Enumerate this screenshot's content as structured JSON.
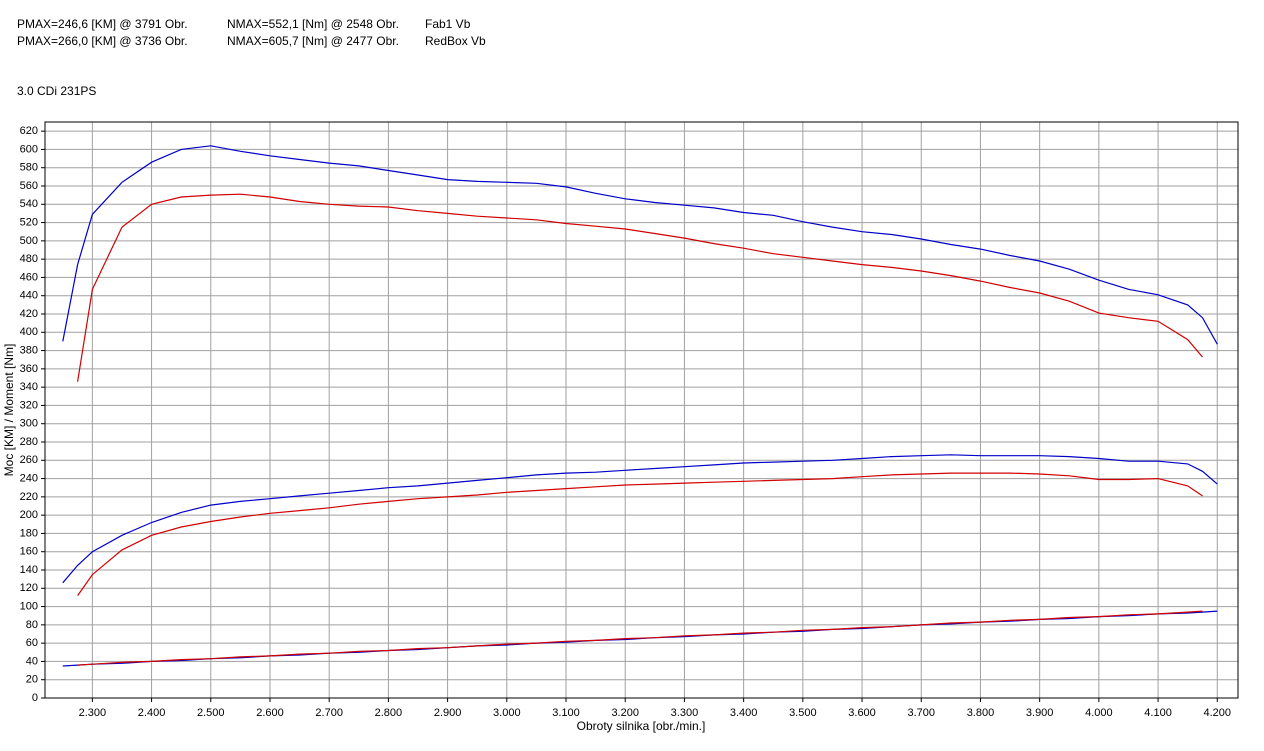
{
  "chart_data": {
    "type": "line",
    "header": [
      {
        "pmax": "PMAX=246,6 [KM] @ 3791 Obr.",
        "nmax": "NMAX=552,1 [Nm] @ 2548 Obr.",
        "name": "Fab1 Vb"
      },
      {
        "pmax": "PMAX=266,0 [KM] @ 3736 Obr.",
        "nmax": "NMAX=605,7 [Nm] @ 2477 Obr.",
        "name": "RedBox Vb"
      }
    ],
    "title": "3.0 CDi 231PS",
    "ylabel": "Moc [KM] / Moment [Nm]",
    "xlabel": "Obroty silnika [obr./min.]",
    "xlim": [
      2220,
      4235
    ],
    "ylim": [
      0,
      630
    ],
    "xticks": [
      {
        "value": 2300,
        "label": "2.300"
      },
      {
        "value": 2400,
        "label": "2.400"
      },
      {
        "value": 2500,
        "label": "2.500"
      },
      {
        "value": 2600,
        "label": "2.600"
      },
      {
        "value": 2700,
        "label": "2.700"
      },
      {
        "value": 2800,
        "label": "2.800"
      },
      {
        "value": 2900,
        "label": "2.900"
      },
      {
        "value": 3000,
        "label": "3.000"
      },
      {
        "value": 3100,
        "label": "3.100"
      },
      {
        "value": 3200,
        "label": "3.200"
      },
      {
        "value": 3300,
        "label": "3.300"
      },
      {
        "value": 3400,
        "label": "3.400"
      },
      {
        "value": 3500,
        "label": "3.500"
      },
      {
        "value": 3600,
        "label": "3.600"
      },
      {
        "value": 3700,
        "label": "3.700"
      },
      {
        "value": 3800,
        "label": "3.800"
      },
      {
        "value": 3900,
        "label": "3.900"
      },
      {
        "value": 4000,
        "label": "4.000"
      },
      {
        "value": 4100,
        "label": "4.100"
      },
      {
        "value": 4200,
        "label": "4.200"
      }
    ],
    "yticks": [
      0,
      20,
      40,
      60,
      80,
      100,
      120,
      140,
      160,
      180,
      200,
      220,
      240,
      260,
      280,
      300,
      320,
      340,
      360,
      380,
      400,
      420,
      440,
      460,
      480,
      500,
      520,
      540,
      560,
      580,
      600,
      620
    ],
    "grid": true,
    "x": [
      2250,
      2275,
      2300,
      2350,
      2400,
      2450,
      2500,
      2550,
      2600,
      2650,
      2700,
      2750,
      2800,
      2850,
      2900,
      2950,
      3000,
      3050,
      3100,
      3150,
      3200,
      3250,
      3300,
      3350,
      3400,
      3450,
      3500,
      3550,
      3600,
      3650,
      3700,
      3750,
      3800,
      3850,
      3900,
      3950,
      4000,
      4050,
      4100,
      4150,
      4175,
      4200
    ],
    "series": [
      {
        "color": "#0000c8",
        "values": [
          390,
          474,
          529,
          564,
          586,
          600,
          604,
          598,
          593,
          589,
          585,
          582,
          577,
          572,
          567,
          565,
          564,
          563,
          559,
          552,
          546,
          542,
          539,
          536,
          531,
          528,
          521,
          515,
          510,
          507,
          502,
          496,
          491,
          484,
          478,
          469,
          457,
          447,
          441,
          430,
          416,
          387
        ]
      },
      {
        "color": "#d00000",
        "values": [
          null,
          346,
          447,
          515,
          540,
          548,
          550,
          551,
          548,
          543,
          540,
          538,
          537,
          533,
          530,
          527,
          525,
          523,
          519,
          516,
          513,
          508,
          503,
          497,
          492,
          486,
          482,
          478,
          474,
          471,
          467,
          462,
          456,
          449,
          443,
          434,
          421,
          416,
          412,
          392,
          373,
          null
        ]
      },
      {
        "color": "#0000c8",
        "values": [
          126,
          145,
          160,
          178,
          192,
          203,
          211,
          215,
          218,
          221,
          224,
          227,
          230,
          232,
          235,
          238,
          241,
          244,
          246,
          247,
          249,
          251,
          253,
          255,
          257,
          258,
          259,
          260,
          262,
          264,
          265,
          266,
          265,
          265,
          265,
          264,
          262,
          259,
          259,
          256,
          248,
          234
        ]
      },
      {
        "color": "#d00000",
        "values": [
          null,
          112,
          135,
          162,
          178,
          187,
          193,
          198,
          202,
          205,
          208,
          212,
          215,
          218,
          220,
          222,
          225,
          227,
          229,
          231,
          233,
          234,
          235,
          236,
          237,
          238,
          239,
          240,
          242,
          244,
          245,
          246,
          246,
          246,
          245,
          243,
          239,
          239,
          240,
          232,
          221,
          null
        ]
      },
      {
        "color": "#0000c8",
        "values": [
          35,
          36,
          37,
          38,
          40,
          41,
          43,
          44,
          46,
          47,
          49,
          50,
          52,
          53,
          55,
          57,
          58,
          60,
          61,
          63,
          64,
          66,
          67,
          69,
          70,
          72,
          73,
          75,
          76,
          78,
          80,
          81,
          83,
          84,
          86,
          87,
          89,
          90,
          92,
          93,
          94,
          95
        ]
      },
      {
        "color": "#d00000",
        "values": [
          null,
          36,
          37,
          39,
          40,
          42,
          43,
          45,
          46,
          48,
          49,
          51,
          52,
          54,
          55,
          57,
          59,
          60,
          62,
          63,
          65,
          66,
          68,
          69,
          71,
          72,
          74,
          75,
          77,
          78,
          80,
          82,
          83,
          85,
          86,
          88,
          89,
          91,
          92,
          94,
          95,
          null
        ]
      }
    ]
  }
}
